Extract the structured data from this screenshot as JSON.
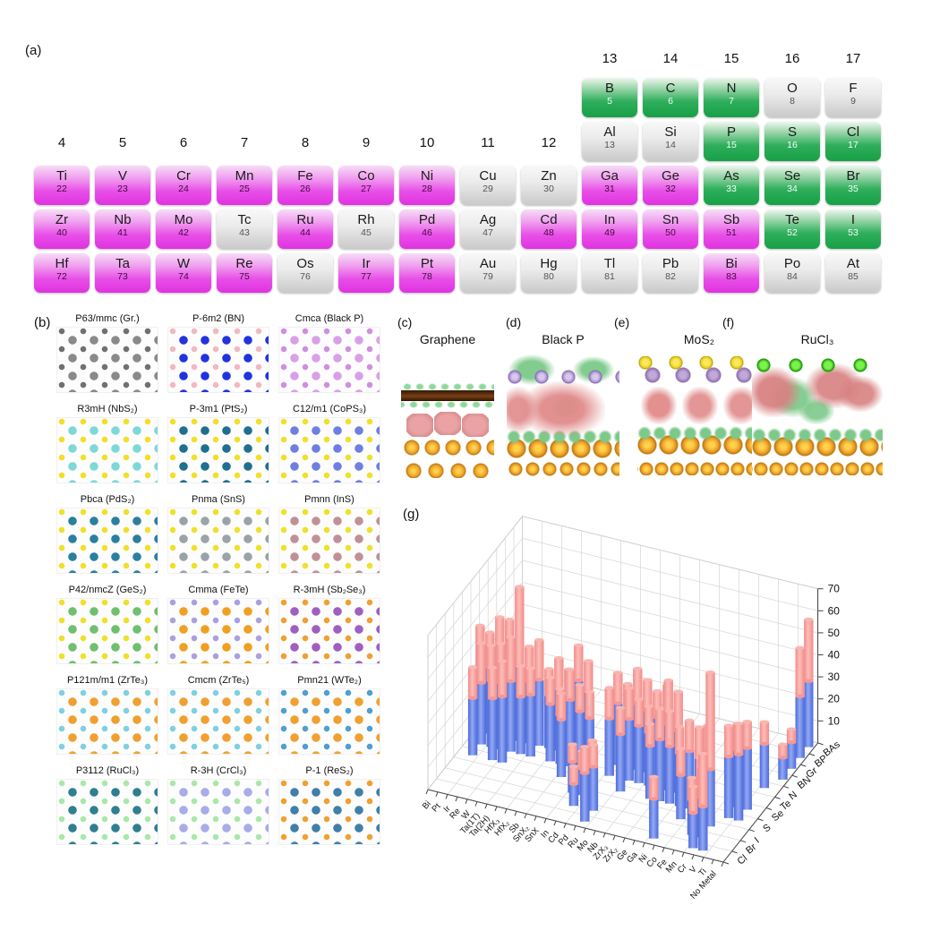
{
  "panels": {
    "a_label": "(a)",
    "b_label": "(b)",
    "g_label": "(g)"
  },
  "periodic_table": {
    "colors": {
      "explored_magenta": "#e83ce8",
      "explored_green": "#1fa24f",
      "unexplored_gray": "#d0d0d0"
    },
    "group_numbers": [
      4,
      5,
      6,
      7,
      8,
      9,
      10,
      11,
      12,
      13,
      14,
      15,
      16,
      17
    ],
    "elements": [
      {
        "symbol": "Ti",
        "number": "22",
        "group": 4,
        "period": 4,
        "cat": "m"
      },
      {
        "symbol": "V",
        "number": "23",
        "group": 5,
        "period": 4,
        "cat": "m"
      },
      {
        "symbol": "Cr",
        "number": "24",
        "group": 6,
        "period": 4,
        "cat": "m"
      },
      {
        "symbol": "Mn",
        "number": "25",
        "group": 7,
        "period": 4,
        "cat": "m"
      },
      {
        "symbol": "Fe",
        "number": "26",
        "group": 8,
        "period": 4,
        "cat": "m"
      },
      {
        "symbol": "Co",
        "number": "27",
        "group": 9,
        "period": 4,
        "cat": "m"
      },
      {
        "symbol": "Ni",
        "number": "28",
        "group": 10,
        "period": 4,
        "cat": "m"
      },
      {
        "symbol": "Cu",
        "number": "29",
        "group": 11,
        "period": 4,
        "cat": "n"
      },
      {
        "symbol": "Zn",
        "number": "30",
        "group": 12,
        "period": 4,
        "cat": "n"
      },
      {
        "symbol": "Zr",
        "number": "40",
        "group": 4,
        "period": 5,
        "cat": "m"
      },
      {
        "symbol": "Nb",
        "number": "41",
        "group": 5,
        "period": 5,
        "cat": "m"
      },
      {
        "symbol": "Mo",
        "number": "42",
        "group": 6,
        "period": 5,
        "cat": "m"
      },
      {
        "symbol": "Tc",
        "number": "43",
        "group": 7,
        "period": 5,
        "cat": "n"
      },
      {
        "symbol": "Ru",
        "number": "44",
        "group": 8,
        "period": 5,
        "cat": "m"
      },
      {
        "symbol": "Rh",
        "number": "45",
        "group": 9,
        "period": 5,
        "cat": "n"
      },
      {
        "symbol": "Pd",
        "number": "46",
        "group": 10,
        "period": 5,
        "cat": "m"
      },
      {
        "symbol": "Ag",
        "number": "47",
        "group": 11,
        "period": 5,
        "cat": "n"
      },
      {
        "symbol": "Cd",
        "number": "48",
        "group": 12,
        "period": 5,
        "cat": "m"
      },
      {
        "symbol": "Hf",
        "number": "72",
        "group": 4,
        "period": 6,
        "cat": "m"
      },
      {
        "symbol": "Ta",
        "number": "73",
        "group": 5,
        "period": 6,
        "cat": "m"
      },
      {
        "symbol": "W",
        "number": "74",
        "group": 6,
        "period": 6,
        "cat": "m"
      },
      {
        "symbol": "Re",
        "number": "75",
        "group": 7,
        "period": 6,
        "cat": "m"
      },
      {
        "symbol": "Os",
        "number": "76",
        "group": 8,
        "period": 6,
        "cat": "n"
      },
      {
        "symbol": "Ir",
        "number": "77",
        "group": 9,
        "period": 6,
        "cat": "m"
      },
      {
        "symbol": "Pt",
        "number": "78",
        "group": 10,
        "period": 6,
        "cat": "m"
      },
      {
        "symbol": "Au",
        "number": "79",
        "group": 11,
        "period": 6,
        "cat": "n"
      },
      {
        "symbol": "Hg",
        "number": "80",
        "group": 12,
        "period": 6,
        "cat": "n"
      },
      {
        "symbol": "B",
        "number": "5",
        "group": 13,
        "period": 2,
        "cat": "g"
      },
      {
        "symbol": "C",
        "number": "6",
        "group": 14,
        "period": 2,
        "cat": "g"
      },
      {
        "symbol": "N",
        "number": "7",
        "group": 15,
        "period": 2,
        "cat": "g"
      },
      {
        "symbol": "O",
        "number": "8",
        "group": 16,
        "period": 2,
        "cat": "n"
      },
      {
        "symbol": "F",
        "number": "9",
        "group": 17,
        "period": 2,
        "cat": "n"
      },
      {
        "symbol": "Al",
        "number": "13",
        "group": 13,
        "period": 3,
        "cat": "n"
      },
      {
        "symbol": "Si",
        "number": "14",
        "group": 14,
        "period": 3,
        "cat": "n"
      },
      {
        "symbol": "P",
        "number": "15",
        "group": 15,
        "period": 3,
        "cat": "g"
      },
      {
        "symbol": "S",
        "number": "16",
        "group": 16,
        "period": 3,
        "cat": "g"
      },
      {
        "symbol": "Cl",
        "number": "17",
        "group": 17,
        "period": 3,
        "cat": "g"
      },
      {
        "symbol": "Ga",
        "number": "31",
        "group": 13,
        "period": 4,
        "cat": "m"
      },
      {
        "symbol": "Ge",
        "number": "32",
        "group": 14,
        "period": 4,
        "cat": "m"
      },
      {
        "symbol": "As",
        "number": "33",
        "group": 15,
        "period": 4,
        "cat": "g"
      },
      {
        "symbol": "Se",
        "number": "34",
        "group": 16,
        "period": 4,
        "cat": "g"
      },
      {
        "symbol": "Br",
        "number": "35",
        "group": 17,
        "period": 4,
        "cat": "g"
      },
      {
        "symbol": "In",
        "number": "49",
        "group": 13,
        "period": 5,
        "cat": "m"
      },
      {
        "symbol": "Sn",
        "number": "50",
        "group": 14,
        "period": 5,
        "cat": "m"
      },
      {
        "symbol": "Sb",
        "number": "51",
        "group": 15,
        "period": 5,
        "cat": "m"
      },
      {
        "symbol": "Te",
        "number": "52",
        "group": 16,
        "period": 5,
        "cat": "g"
      },
      {
        "symbol": "I",
        "number": "53",
        "group": 17,
        "period": 5,
        "cat": "g"
      },
      {
        "symbol": "Tl",
        "number": "81",
        "group": 13,
        "period": 6,
        "cat": "n"
      },
      {
        "symbol": "Pb",
        "number": "82",
        "group": 14,
        "period": 6,
        "cat": "n"
      },
      {
        "symbol": "Bi",
        "number": "83",
        "group": 15,
        "period": 6,
        "cat": "m"
      },
      {
        "symbol": "Po",
        "number": "84",
        "group": 16,
        "period": 6,
        "cat": "n"
      },
      {
        "symbol": "At",
        "number": "85",
        "group": 17,
        "period": 6,
        "cat": "n"
      }
    ]
  },
  "structures": {
    "items": [
      {
        "label": "P63/mmc (Gr.)",
        "c1": "#8a8a8a",
        "c2": "#707070"
      },
      {
        "label": "P-6m2 (BN)",
        "c1": "#2233dd",
        "c2": "#f2b8c0"
      },
      {
        "label": "Cmca (Black P)",
        "c1": "#d9a0e8",
        "c2": "#cf8fe0"
      },
      {
        "label": "R3mH (NbS₂)",
        "c1": "#7fd8d8",
        "c2": "#f0e028"
      },
      {
        "label": "P-3m1 (PtS₂)",
        "c1": "#1f6f8f",
        "c2": "#f0e028"
      },
      {
        "label": "C12/m1 (CoPS₃)",
        "c1": "#6f7fe0",
        "c2": "#f0e028"
      },
      {
        "label": "Pbca (PdS₂)",
        "c1": "#2a7f9f",
        "c2": "#f0e028"
      },
      {
        "label": "Pnma (SnS)",
        "c1": "#9aa4a8",
        "c2": "#f0e028"
      },
      {
        "label": "Pmnn (InS)",
        "c1": "#c09098",
        "c2": "#f0e028"
      },
      {
        "label": "P42/nmcZ (GeS₂)",
        "c1": "#6fbf6f",
        "c2": "#f0e028"
      },
      {
        "label": "Cmma (FeTe)",
        "c1": "#f09f20",
        "c2": "#a9a0e0"
      },
      {
        "label": "R-3mH (Sb₂Se₃)",
        "c1": "#9f5fbf",
        "c2": "#f0a030"
      },
      {
        "label": "P121m/m1 (ZrTe₃)",
        "c1": "#f0a030",
        "c2": "#7fd0e0"
      },
      {
        "label": "Cmcm (ZrTe₅)",
        "c1": "#f0a030",
        "c2": "#7fd0e0"
      },
      {
        "label": "Pmn21 (WTe₂)",
        "c1": "#f0a030",
        "c2": "#4f9fd0"
      },
      {
        "label": "P3112 (RuCl₃)",
        "c1": "#2f7f8f",
        "c2": "#a8e8a8"
      },
      {
        "label": "R-3H (CrCl₃)",
        "c1": "#a8ace8",
        "c2": "#a8e8a8"
      },
      {
        "label": "P-1 (ReS₂)",
        "c1": "#3f7fa8",
        "c2": "#f0a030"
      }
    ]
  },
  "charge_panels": {
    "items": [
      {
        "id": "c",
        "letter": "(c)",
        "title": "Graphene"
      },
      {
        "id": "d",
        "letter": "(d)",
        "title": "Black P"
      },
      {
        "id": "e",
        "letter": "(e)",
        "title": "MoS₂"
      },
      {
        "id": "f",
        "letter": "(f)",
        "title": "RuCl₃"
      }
    ]
  },
  "chart_data": {
    "type": "bar",
    "variant": "3d-stacked-cylinders",
    "x_categories": [
      "Bi",
      "Pt",
      "Ir",
      "Re",
      "W",
      "Ta(1T)",
      "Ta(2H)",
      "HfX₃",
      "HfX₂",
      "Sb",
      "SnX₂",
      "SnX",
      "In",
      "Cd",
      "Pd",
      "Ru",
      "Mo",
      "Nb",
      "ZrX₃",
      "ZrX₂",
      "Ge",
      "Ga",
      "Ni",
      "Co",
      "Fe",
      "Mn",
      "Cr",
      "V",
      "Ti",
      "No Metal"
    ],
    "y_categories": [
      "Cl",
      "Br",
      "I",
      "S",
      "Se",
      "Te",
      "N",
      "BN",
      "Gr",
      "BP",
      "BAs"
    ],
    "z_ticks": [
      10,
      20,
      30,
      40,
      50,
      60,
      70
    ],
    "z_max": 70,
    "series_colors": {
      "bottom_segment": "#5b78e2",
      "top_segment": "#f79795"
    },
    "bars_format": "[x_index, y_index, bottom_value, top_value]",
    "bars": [
      [
        0,
        5,
        30,
        18
      ],
      [
        1,
        5,
        30,
        16
      ],
      [
        1,
        4,
        28,
        18
      ],
      [
        1,
        3,
        26,
        14
      ],
      [
        2,
        5,
        32,
        22
      ],
      [
        2,
        4,
        30,
        16
      ],
      [
        3,
        5,
        30,
        24
      ],
      [
        3,
        4,
        30,
        18
      ],
      [
        3,
        3,
        28,
        14
      ],
      [
        4,
        5,
        34,
        36
      ],
      [
        4,
        4,
        32,
        20
      ],
      [
        4,
        3,
        30,
        16
      ],
      [
        5,
        5,
        28,
        16
      ],
      [
        5,
        4,
        26,
        14
      ],
      [
        6,
        5,
        30,
        18
      ],
      [
        6,
        4,
        28,
        12
      ],
      [
        7,
        5,
        24,
        12
      ],
      [
        8,
        5,
        28,
        14
      ],
      [
        8,
        4,
        26,
        12
      ],
      [
        9,
        5,
        24,
        14
      ],
      [
        9,
        4,
        22,
        12
      ],
      [
        10,
        5,
        34,
        16
      ],
      [
        10,
        4,
        30,
        14
      ],
      [
        10,
        3,
        26,
        12
      ],
      [
        11,
        5,
        30,
        14
      ],
      [
        11,
        4,
        26,
        12
      ],
      [
        12,
        4,
        24,
        12
      ],
      [
        12,
        2,
        14,
        8
      ],
      [
        13,
        2,
        12,
        8
      ],
      [
        13,
        1,
        10,
        8
      ],
      [
        14,
        5,
        28,
        14
      ],
      [
        14,
        4,
        26,
        14
      ],
      [
        14,
        2,
        16,
        10
      ],
      [
        15,
        5,
        26,
        12
      ],
      [
        15,
        1,
        20,
        10
      ],
      [
        15,
        0,
        22,
        12
      ],
      [
        16,
        5,
        30,
        16
      ],
      [
        16,
        4,
        28,
        14
      ],
      [
        16,
        3,
        26,
        12
      ],
      [
        17,
        5,
        28,
        14
      ],
      [
        17,
        4,
        26,
        12
      ],
      [
        18,
        5,
        26,
        12
      ],
      [
        18,
        4,
        24,
        12
      ],
      [
        19,
        5,
        28,
        14
      ],
      [
        19,
        3,
        24,
        10
      ],
      [
        20,
        4,
        30,
        20
      ],
      [
        20,
        3,
        28,
        14
      ],
      [
        21,
        4,
        28,
        18
      ],
      [
        21,
        3,
        26,
        16
      ],
      [
        22,
        3,
        24,
        12
      ],
      [
        22,
        0,
        18,
        10
      ],
      [
        23,
        3,
        26,
        14
      ],
      [
        23,
        2,
        20,
        12
      ],
      [
        24,
        3,
        24,
        14
      ],
      [
        24,
        4,
        22,
        12
      ],
      [
        25,
        2,
        18,
        12
      ],
      [
        25,
        1,
        16,
        10
      ],
      [
        26,
        2,
        26,
        44
      ],
      [
        26,
        1,
        18,
        14
      ],
      [
        26,
        0,
        16,
        12
      ],
      [
        27,
        3,
        28,
        14
      ],
      [
        27,
        4,
        26,
        12
      ],
      [
        27,
        0,
        20,
        24
      ],
      [
        28,
        3,
        30,
        14
      ],
      [
        28,
        4,
        28,
        12
      ],
      [
        28,
        6,
        20,
        10
      ],
      [
        29,
        10,
        30,
        28
      ],
      [
        29,
        9,
        28,
        22
      ],
      [
        29,
        8,
        12,
        6
      ],
      [
        29,
        7,
        10,
        6
      ]
    ]
  }
}
